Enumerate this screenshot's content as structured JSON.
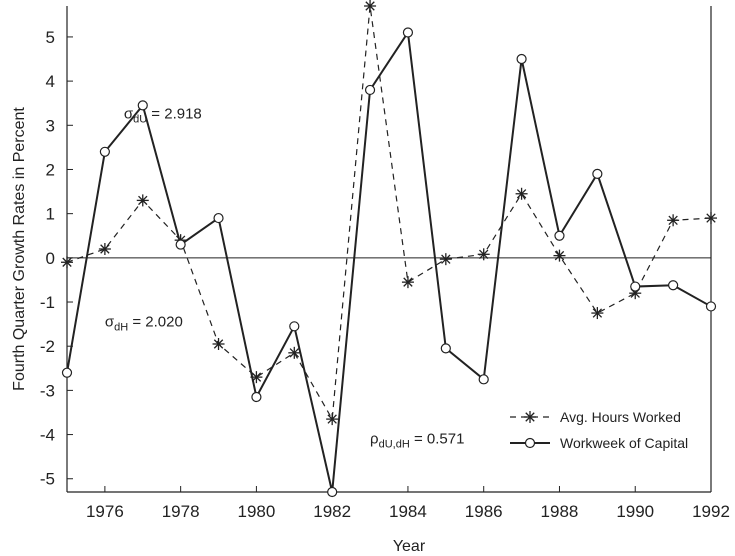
{
  "chart_data": {
    "type": "line",
    "title": "",
    "xlabel": "Year",
    "ylabel": "Fourth Quarter Growth Rates in Percent",
    "xlim": [
      1975,
      1992
    ],
    "ylim": [
      -5.3,
      5.7
    ],
    "x_ticks": [
      1976,
      1978,
      1980,
      1982,
      1984,
      1986,
      1988,
      1990,
      1992
    ],
    "x_tick_labels": [
      "1976",
      "1978",
      "1980",
      "1982",
      "1984",
      "1986",
      "1988",
      "1990",
      "1992"
    ],
    "y_ticks": [
      5,
      4,
      3,
      2,
      1,
      0,
      -1,
      -2,
      -3,
      -4,
      -5
    ],
    "y_tick_labels": [
      "5",
      "4",
      "3",
      "2",
      "1",
      "0",
      "-1",
      "-2",
      "-3",
      "-4",
      "-5"
    ],
    "zero_line": true,
    "grid": false,
    "legend_position": "bottom-right",
    "x": [
      1975,
      1976,
      1977,
      1978,
      1979,
      1980,
      1981,
      1982,
      1983,
      1984,
      1985,
      1986,
      1987,
      1988,
      1989,
      1990,
      1991,
      1992
    ],
    "series": [
      {
        "name": "Avg. Hours Worked",
        "style": "dashed",
        "marker": "asterisk",
        "color": "#222222",
        "values": [
          -0.1,
          0.2,
          1.3,
          0.4,
          -1.95,
          -2.7,
          -2.15,
          -3.65,
          5.7,
          -0.55,
          -0.03,
          0.08,
          1.45,
          0.05,
          -1.25,
          -0.8,
          0.85,
          0.9
        ]
      },
      {
        "name": "Workweek of Capital",
        "style": "solid",
        "marker": "circle",
        "color": "#222222",
        "values": [
          -2.6,
          2.4,
          3.45,
          0.3,
          0.9,
          -3.15,
          -1.55,
          -5.3,
          3.8,
          5.1,
          -2.05,
          -2.75,
          4.5,
          0.5,
          1.9,
          -0.65,
          -0.62,
          -1.1
        ]
      }
    ],
    "annotations": [
      {
        "base": "σ",
        "sub": "dU",
        "rest": " = 2.918",
        "x": 1976.5,
        "y": 3.15
      },
      {
        "base": "σ",
        "sub": "dH",
        "rest": " = 2.020",
        "x": 1976.0,
        "y": -1.55
      },
      {
        "base": "ρ",
        "sub": "dU,dH",
        "rest": " = 0.571",
        "x": 1983.0,
        "y": -4.2
      }
    ]
  }
}
